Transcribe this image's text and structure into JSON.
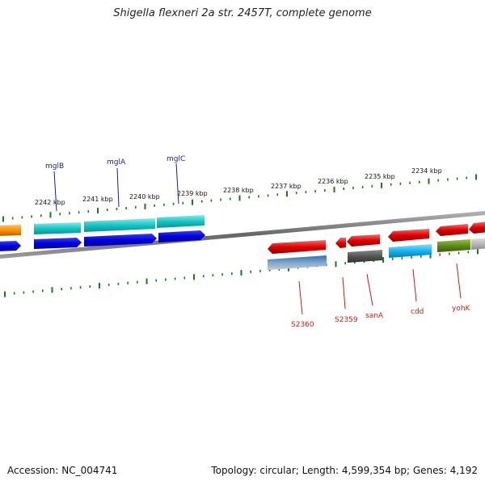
{
  "title": "Shigella flexneri 2a str. 2457T, complete genome",
  "footer": {
    "accession": "Accession: NC_004741",
    "topology": "Topology: circular; Length: 4,599,354 bp; Genes: 4,192"
  },
  "ticks": {
    "labels": [
      "2242 kbp",
      "2241 kbp",
      "2240 kbp",
      "2239 kbp",
      "2238 kbp",
      "2237 kbp",
      "2236 kbp",
      "2235 kbp",
      "2234 kbp"
    ]
  },
  "genes_top": [
    "mglB",
    "mglA",
    "mglC"
  ],
  "genes_bottom": [
    "S2360",
    "S2359",
    "sanA",
    "cdd",
    "yohK"
  ],
  "colors": {
    "forward": "#0000dd",
    "forward_cog": "#19c4c4",
    "reverse": "#e00000",
    "backbone": "#777777",
    "tick": "#1a7a1a"
  }
}
